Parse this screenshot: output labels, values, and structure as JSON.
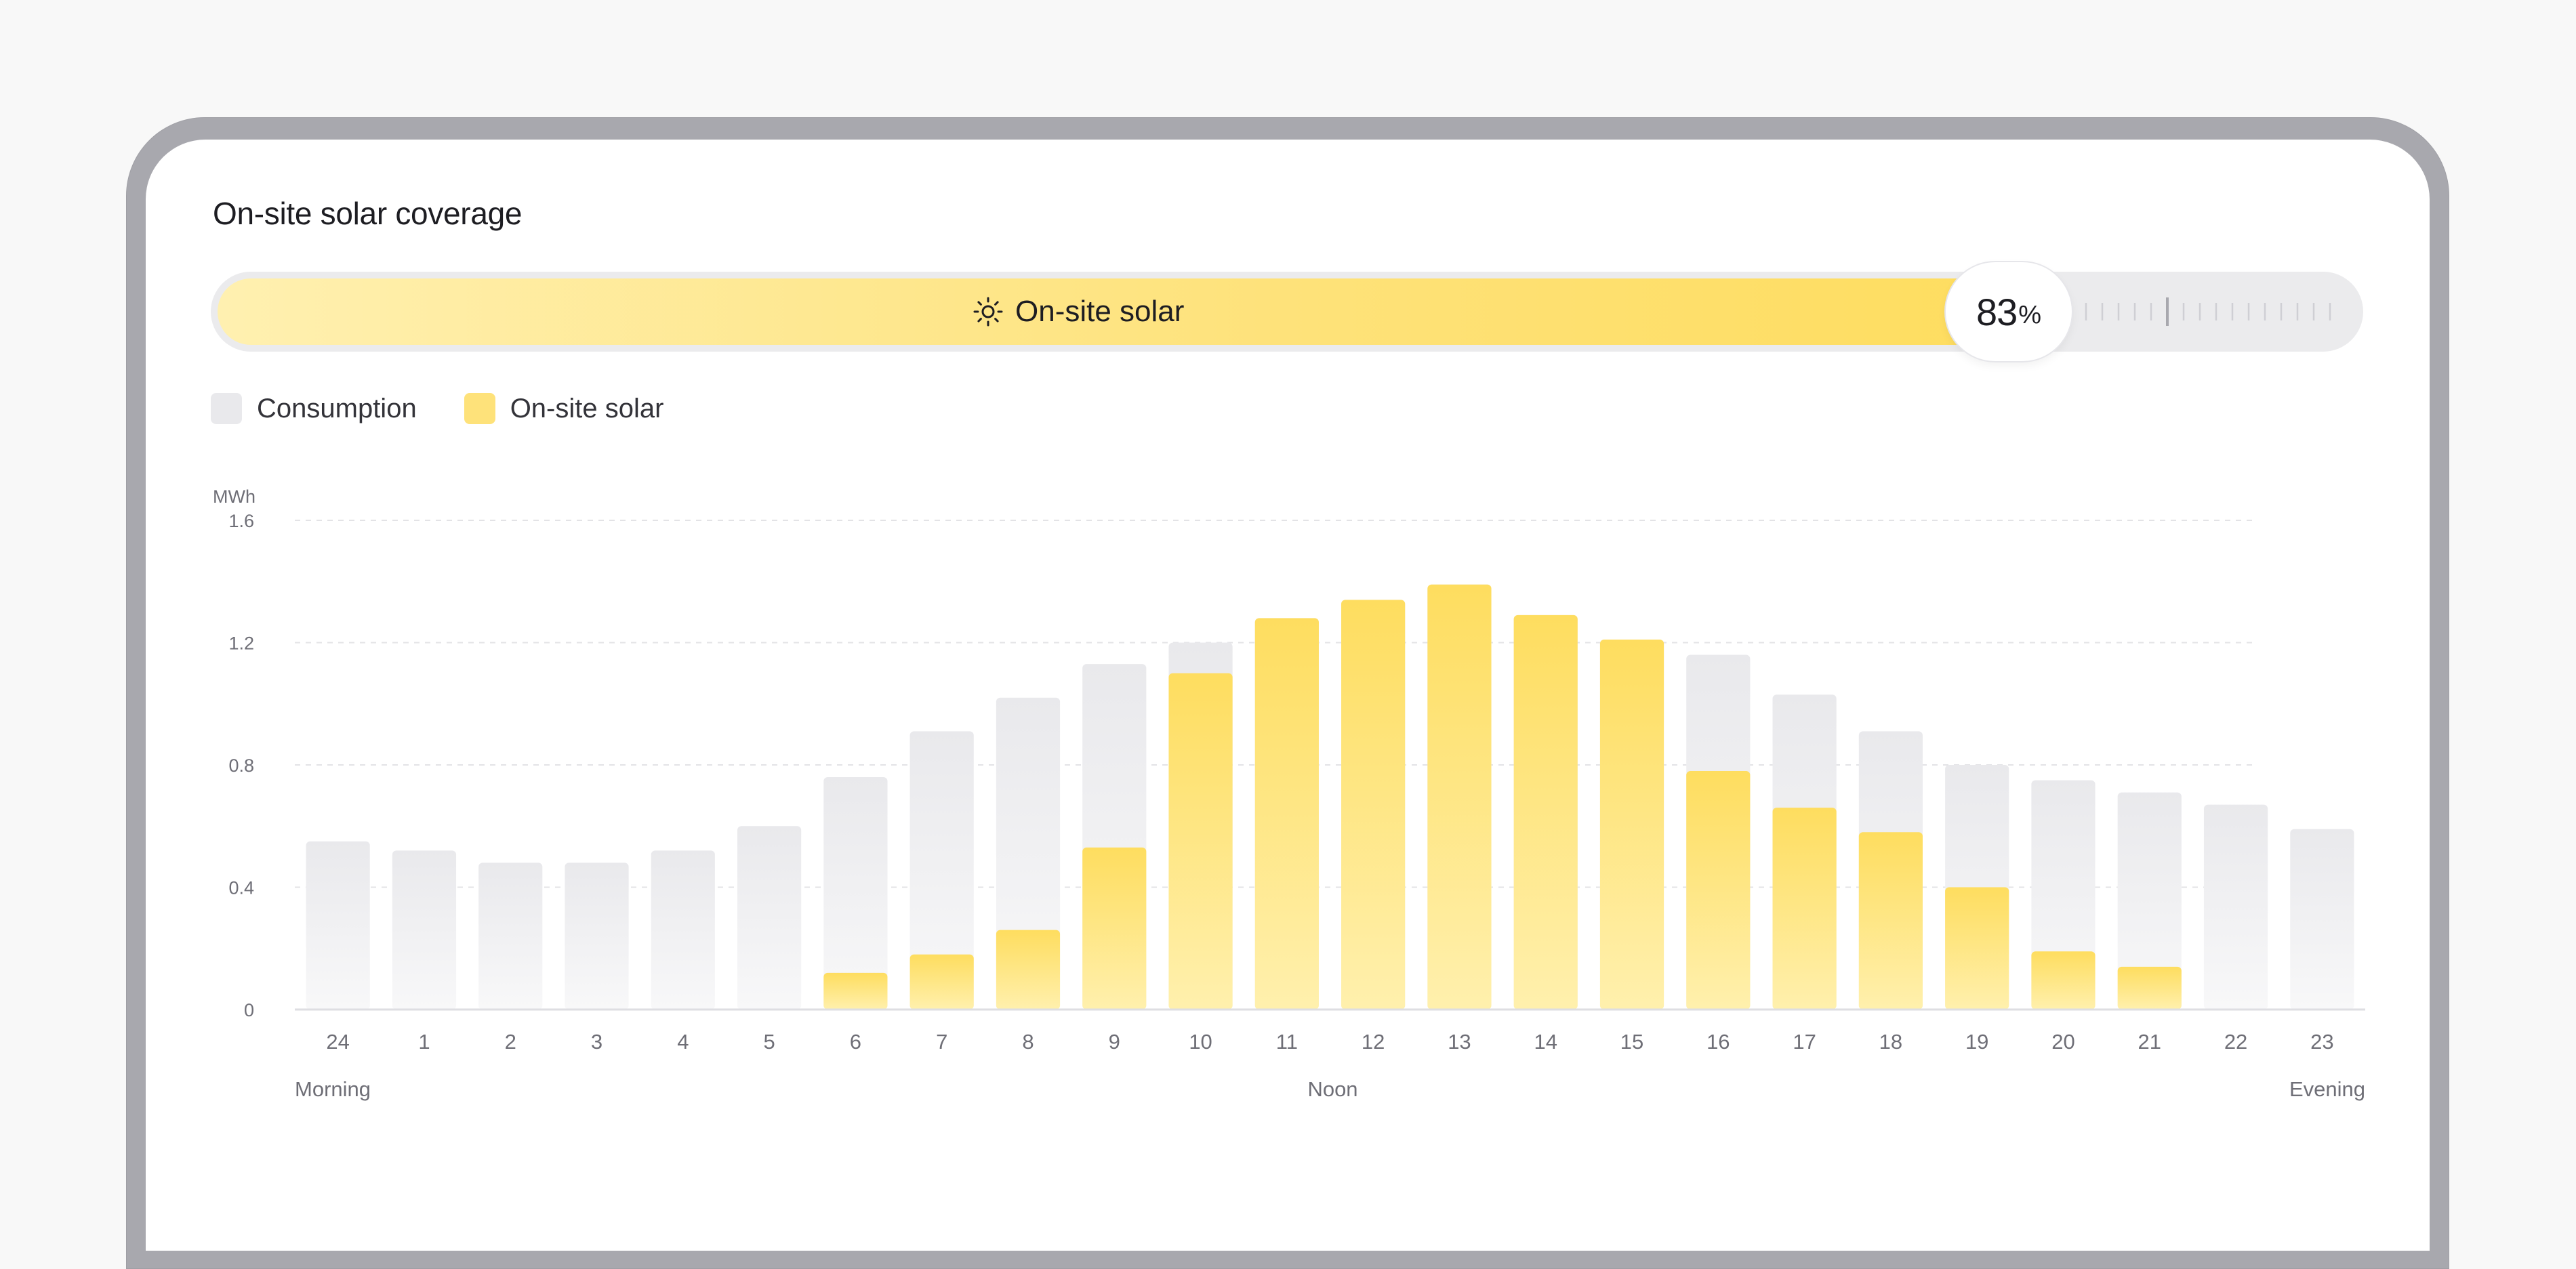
{
  "title": "On-site solar coverage",
  "coverage": {
    "label": "On-site solar",
    "percent_value": "83",
    "percent_sign": "%",
    "fraction": 0.83
  },
  "legend": {
    "consumption": "Consumption",
    "solar": "On-site solar"
  },
  "colors": {
    "consumption": "#e9e9ec",
    "solar": "#fee27a",
    "grid": "#e3e3e6",
    "axis_text": "#6e6e76"
  },
  "chart_data": {
    "type": "bar",
    "ylabel": "MWh",
    "ylim": [
      0,
      1.6
    ],
    "yticks": [
      "0",
      "0.4",
      "0.8",
      "1.2",
      "1.6"
    ],
    "ytick_values": [
      0,
      0.4,
      0.8,
      1.2,
      1.6
    ],
    "grid": true,
    "categories": [
      "24",
      "1",
      "2",
      "3",
      "4",
      "5",
      "6",
      "7",
      "8",
      "9",
      "10",
      "11",
      "12",
      "13",
      "14",
      "15",
      "16",
      "17",
      "18",
      "19",
      "20",
      "21",
      "22",
      "23"
    ],
    "series": [
      {
        "name": "Consumption",
        "values": [
          0.55,
          0.52,
          0.48,
          0.48,
          0.52,
          0.6,
          0.76,
          0.91,
          1.02,
          1.13,
          1.2,
          1.28,
          1.34,
          1.39,
          1.29,
          1.21,
          1.16,
          1.03,
          0.91,
          0.8,
          0.75,
          0.71,
          0.67,
          0.59
        ]
      },
      {
        "name": "On-site solar",
        "values": [
          0,
          0,
          0,
          0,
          0,
          0,
          0.12,
          0.18,
          0.26,
          0.53,
          1.1,
          1.28,
          1.34,
          1.39,
          1.29,
          1.21,
          0.78,
          0.66,
          0.58,
          0.4,
          0.19,
          0.14,
          0,
          0
        ]
      }
    ],
    "period_labels": {
      "start": "Morning",
      "middle": "Noon",
      "end": "Evening"
    }
  }
}
